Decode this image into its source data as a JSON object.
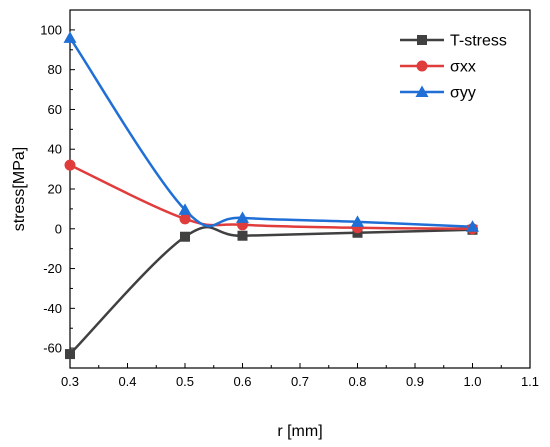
{
  "chart_data": {
    "type": "line",
    "xlabel": "r [mm]",
    "ylabel": "stress[MPa]",
    "xlim": [
      0.3,
      1.1
    ],
    "ylim": [
      -70,
      110
    ],
    "x_ticks": [
      0.3,
      0.4,
      0.5,
      0.6,
      0.7,
      0.8,
      0.9,
      1.0,
      1.1
    ],
    "x_tick_labels": [
      "0.3",
      "0.4",
      "0.5",
      "0.6",
      "0.7",
      "0.8",
      "0.9",
      "1.0",
      "1.1"
    ],
    "y_ticks": [
      -60,
      -40,
      -20,
      0,
      20,
      40,
      60,
      80,
      100
    ],
    "y_tick_labels": [
      "-60",
      "-40",
      "-20",
      "0",
      "20",
      "40",
      "60",
      "80",
      "100"
    ],
    "grid": false,
    "legend_position": "top-right",
    "series": [
      {
        "name": "T-stress",
        "marker": "square",
        "color": "#404040",
        "x": [
          0.3,
          0.5,
          0.6,
          0.8,
          1.0
        ],
        "y": [
          -63,
          -4,
          -3.5,
          -2,
          -0.5
        ]
      },
      {
        "name": "σxx",
        "marker": "circle",
        "color": "#e03c3c",
        "x": [
          0.3,
          0.5,
          0.6,
          0.8,
          1.0
        ],
        "y": [
          32,
          5,
          2,
          0.5,
          0
        ]
      },
      {
        "name": "σyy",
        "marker": "triangle",
        "color": "#1f6fd6",
        "x": [
          0.3,
          0.5,
          0.6,
          0.8,
          1.0
        ],
        "y": [
          96,
          9.5,
          5.5,
          3.5,
          1
        ]
      }
    ]
  }
}
